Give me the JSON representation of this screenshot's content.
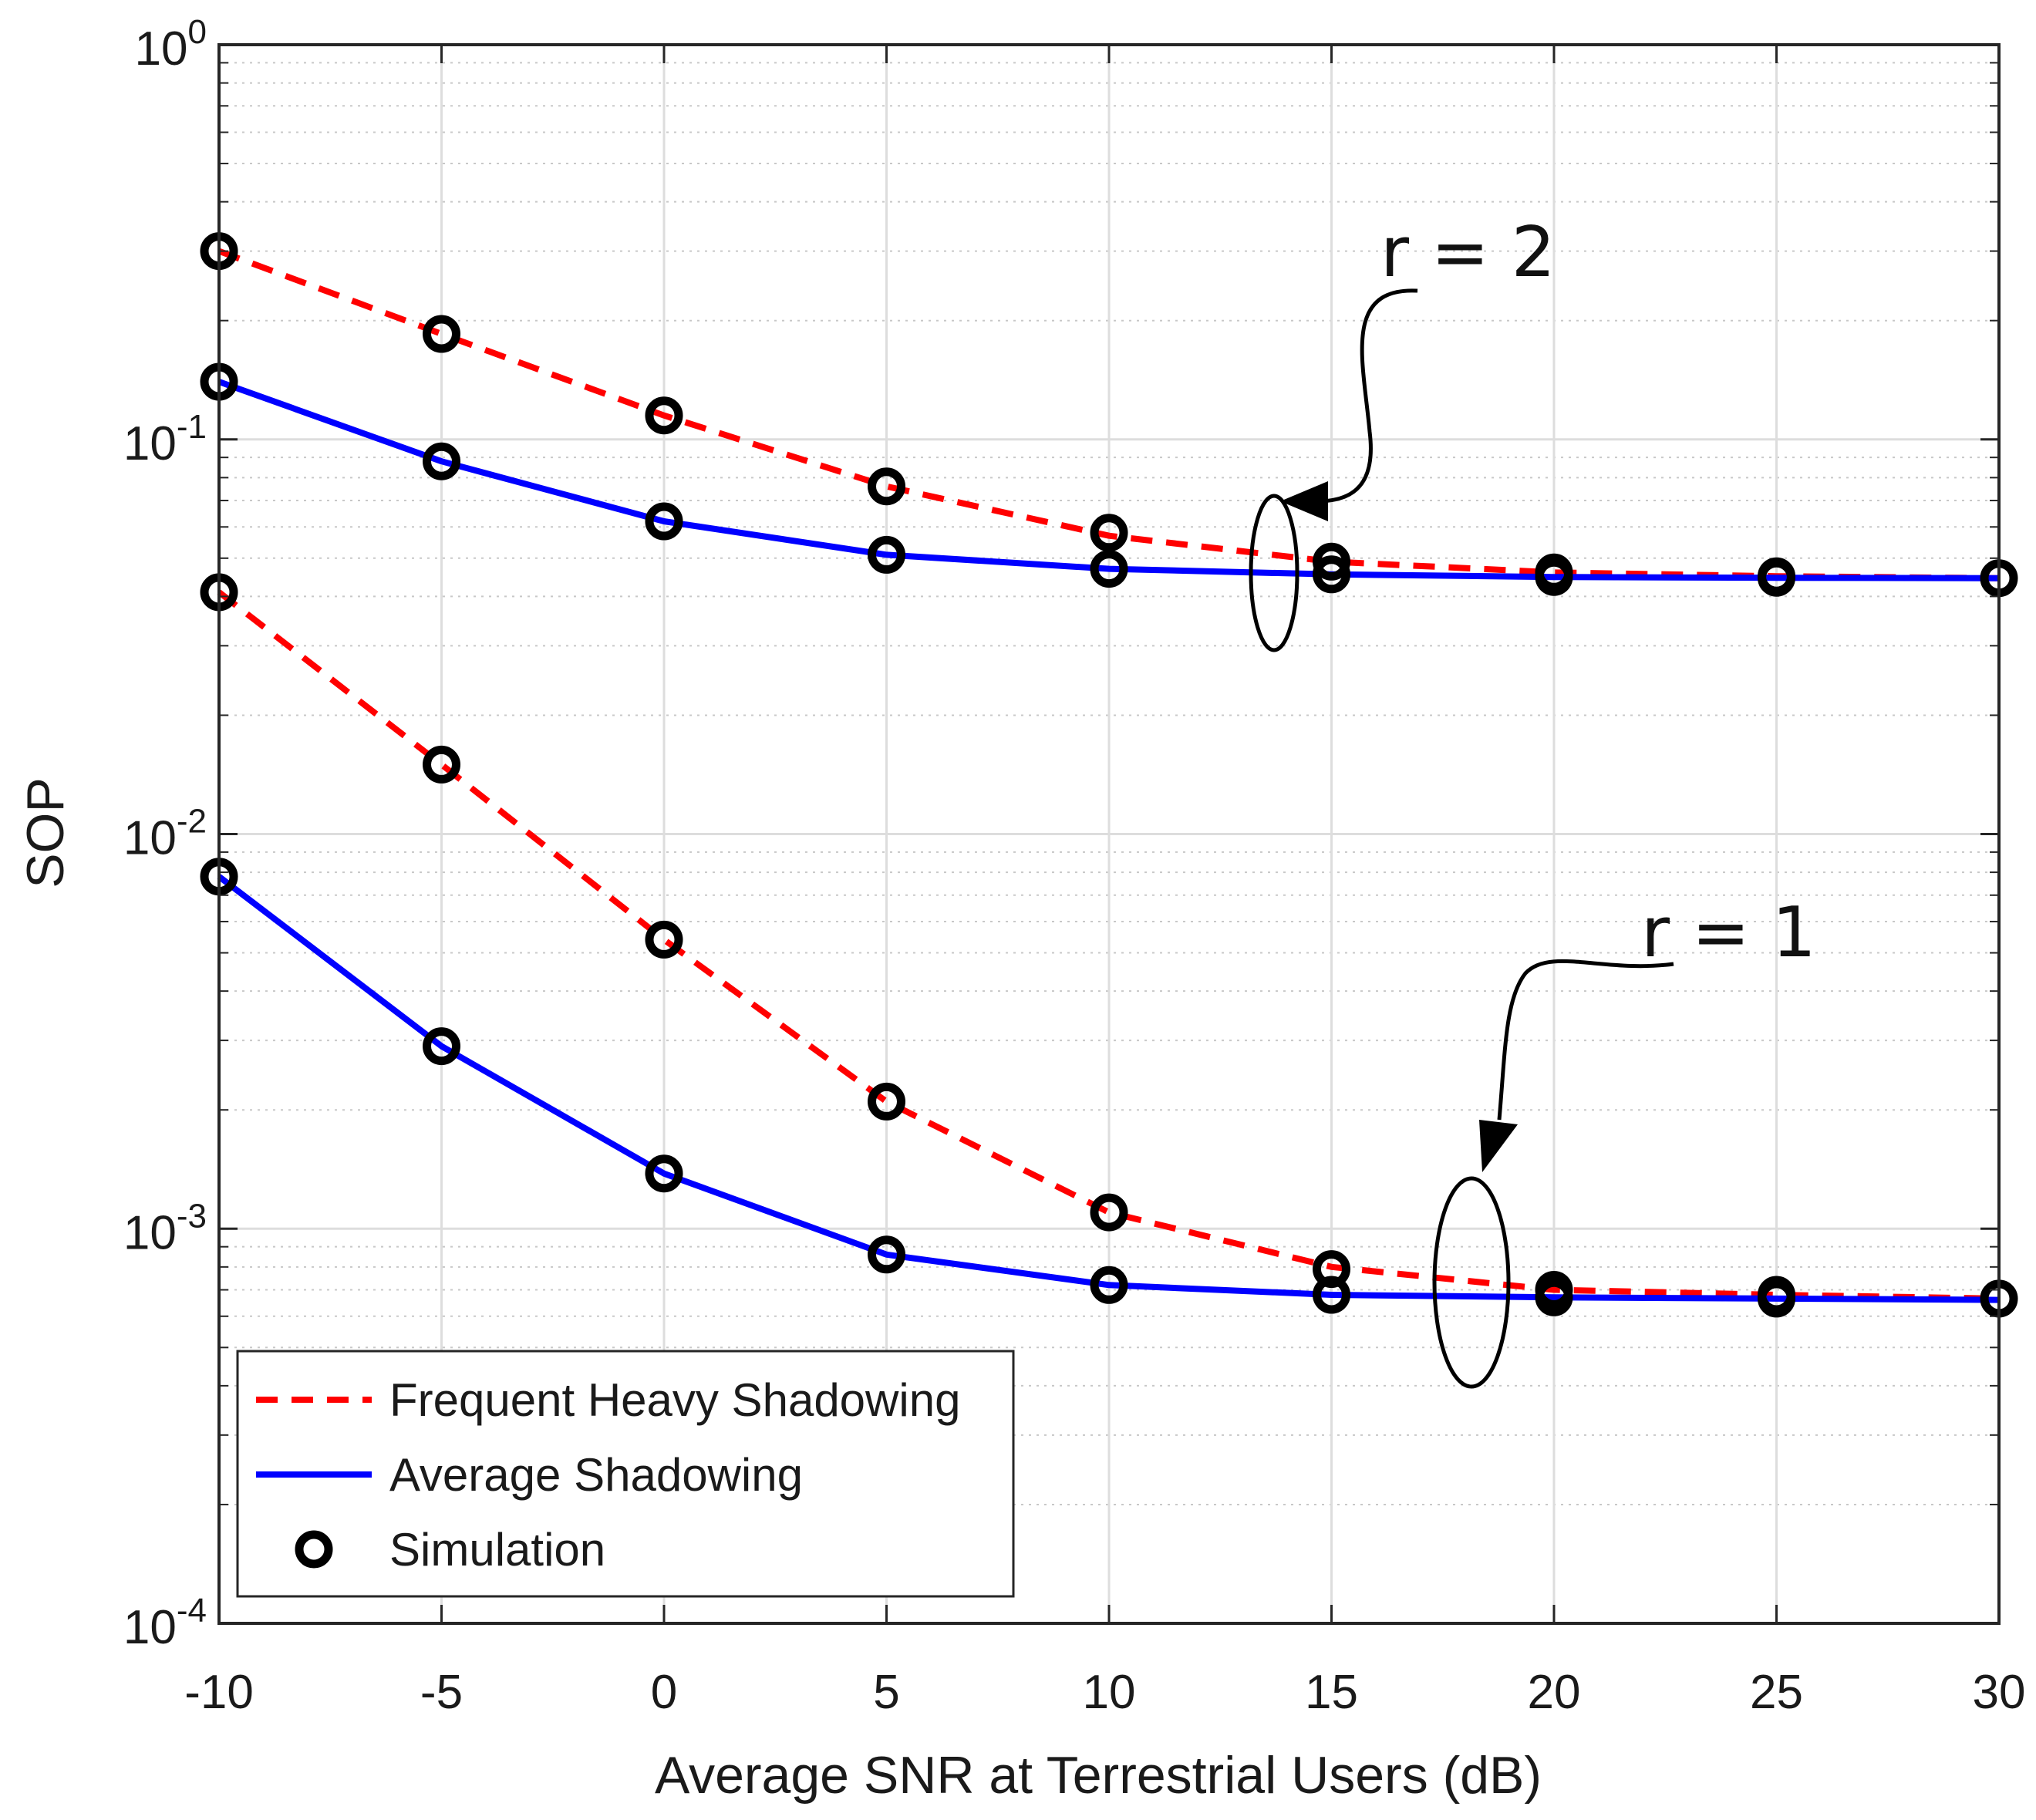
{
  "chart_data": {
    "type": "line",
    "xlabel": "Average SNR at Terrestrial Users (dB)",
    "ylabel": "SOP",
    "yscale": "log",
    "xlim": [
      -10,
      30
    ],
    "ylim": [
      0.0001,
      1
    ],
    "grid": true,
    "x": [
      -10,
      -5,
      0,
      5,
      10,
      15,
      20,
      25,
      30
    ],
    "x_tick_labels": [
      "-10",
      "-5",
      "0",
      "5",
      "10",
      "15",
      "20",
      "25",
      "30"
    ],
    "y_ticks": [
      {
        "base": "10",
        "exp": "0",
        "value": 1
      },
      {
        "base": "10",
        "exp": "-1",
        "value": 0.1
      },
      {
        "base": "10",
        "exp": "-2",
        "value": 0.01
      },
      {
        "base": "10",
        "exp": "-3",
        "value": 0.001
      },
      {
        "base": "10",
        "exp": "-4",
        "value": 0.0001
      }
    ],
    "series": [
      {
        "name": "Frequent Heavy Shadowing",
        "group": "r = 2",
        "style": "dashed",
        "color": "#ff0000",
        "values": [
          0.3,
          0.185,
          0.115,
          0.076,
          0.057,
          0.049,
          0.046,
          0.045,
          0.0445
        ]
      },
      {
        "name": "Average Shadowing",
        "group": "r = 2",
        "style": "solid",
        "color": "#0000ff",
        "values": [
          0.14,
          0.088,
          0.062,
          0.051,
          0.047,
          0.0455,
          0.0448,
          0.0446,
          0.0445
        ]
      },
      {
        "name": "Frequent Heavy Shadowing",
        "group": "r = 1",
        "style": "dashed",
        "color": "#ff0000",
        "values": [
          0.041,
          0.015,
          0.0054,
          0.0021,
          0.0011,
          0.0008,
          0.0007,
          0.00068,
          0.000665
        ]
      },
      {
        "name": "Average Shadowing",
        "group": "r = 1",
        "style": "solid",
        "color": "#0000ff",
        "values": [
          0.0078,
          0.0029,
          0.00138,
          0.00086,
          0.00072,
          0.00068,
          0.00067,
          0.000665,
          0.00066
        ]
      }
    ],
    "simulation_markers": {
      "name": "Simulation",
      "color": "#000000",
      "points": [
        [
          -10,
          0.3
        ],
        [
          -5,
          0.185
        ],
        [
          0,
          0.115
        ],
        [
          5,
          0.076
        ],
        [
          10,
          0.058
        ],
        [
          15,
          0.049
        ],
        [
          20,
          0.046
        ],
        [
          25,
          0.045
        ],
        [
          30,
          0.0445
        ],
        [
          -10,
          0.14
        ],
        [
          -5,
          0.088
        ],
        [
          0,
          0.062
        ],
        [
          5,
          0.051
        ],
        [
          10,
          0.047
        ],
        [
          15,
          0.0455
        ],
        [
          20,
          0.0448
        ],
        [
          25,
          0.0446
        ],
        [
          -10,
          0.041
        ],
        [
          -5,
          0.015
        ],
        [
          0,
          0.0054
        ],
        [
          5,
          0.0021
        ],
        [
          10,
          0.0011
        ],
        [
          15,
          0.00079
        ],
        [
          20,
          0.0007
        ],
        [
          25,
          0.00068
        ],
        [
          30,
          0.000665
        ],
        [
          -10,
          0.0078
        ],
        [
          -5,
          0.0029
        ],
        [
          0,
          0.00138
        ],
        [
          5,
          0.00086
        ],
        [
          10,
          0.00072
        ],
        [
          15,
          0.00068
        ],
        [
          20,
          0.00067
        ],
        [
          25,
          0.000665
        ]
      ]
    },
    "legend": {
      "position": "bottom-left",
      "entries": [
        {
          "label": "Frequent Heavy Shadowing",
          "style": "dashed",
          "color": "#ff0000"
        },
        {
          "label": "Average Shadowing",
          "style": "solid",
          "color": "#0000ff"
        },
        {
          "label": "Simulation",
          "style": "marker",
          "color": "#000000"
        }
      ]
    },
    "annotations": [
      {
        "text": "r = 2",
        "target_x": 14,
        "target_y": 0.045
      },
      {
        "text": "r = 1",
        "target_x": 18.2,
        "target_y": 0.0007
      }
    ]
  }
}
